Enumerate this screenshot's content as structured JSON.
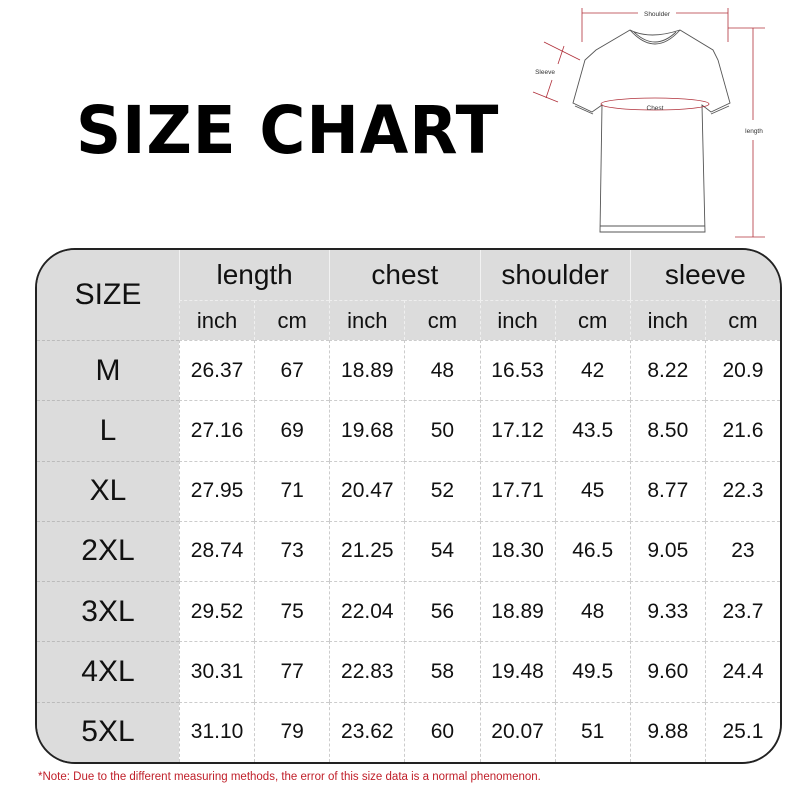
{
  "title": "SIZE CHART",
  "diagram": {
    "labels": {
      "shoulder": "Shoulder",
      "sleeve": "Sleeve",
      "chest": "Chest",
      "length": "length"
    },
    "line_color": "#b0303a"
  },
  "note": "*Note: Due to the different measuring methods, the error of this size data is a normal phenomenon.",
  "chart_data": {
    "type": "table",
    "size_header": "SIZE",
    "groups": [
      "length",
      "chest",
      "shoulder",
      "sleeve"
    ],
    "units": [
      "inch",
      "cm"
    ],
    "rows": [
      {
        "size": "M",
        "values": [
          "26.37",
          "67",
          "18.89",
          "48",
          "16.53",
          "42",
          "8.22",
          "20.9"
        ]
      },
      {
        "size": "L",
        "values": [
          "27.16",
          "69",
          "19.68",
          "50",
          "17.12",
          "43.5",
          "8.50",
          "21.6"
        ]
      },
      {
        "size": "XL",
        "values": [
          "27.95",
          "71",
          "20.47",
          "52",
          "17.71",
          "45",
          "8.77",
          "22.3"
        ]
      },
      {
        "size": "2XL",
        "values": [
          "28.74",
          "73",
          "21.25",
          "54",
          "18.30",
          "46.5",
          "9.05",
          "23"
        ]
      },
      {
        "size": "3XL",
        "values": [
          "29.52",
          "75",
          "22.04",
          "56",
          "18.89",
          "48",
          "9.33",
          "23.7"
        ]
      },
      {
        "size": "4XL",
        "values": [
          "30.31",
          "77",
          "22.83",
          "58",
          "19.48",
          "49.5",
          "9.60",
          "24.4"
        ]
      },
      {
        "size": "5XL",
        "values": [
          "31.10",
          "79",
          "23.62",
          "60",
          "20.07",
          "51",
          "9.88",
          "25.1"
        ]
      }
    ]
  }
}
